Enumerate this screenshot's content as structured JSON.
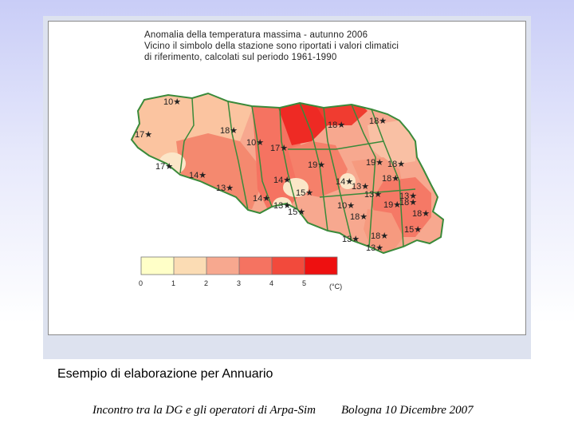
{
  "map": {
    "title_lines": [
      "Anomalia della temperatura massima - autunno 2006",
      "Vicino il simbolo della stazione sono riportati i valori climatici",
      "di riferimento, calcolati sul periodo 1961-1990"
    ],
    "station_labels": [
      "10",
      "18",
      "17",
      "18",
      "10",
      "17",
      "18",
      "18",
      "19",
      "19",
      "18",
      "17",
      "14",
      "14",
      "13",
      "14",
      "15",
      "14",
      "13",
      "13",
      "13",
      "18",
      "19",
      "13",
      "15",
      "10",
      "18",
      "18",
      "13",
      "18",
      "15",
      "13"
    ],
    "legend": {
      "ticks": [
        "0",
        "1",
        "2",
        "3",
        "4",
        "5"
      ],
      "unit": "(°C)",
      "colors": [
        "#ffffc8",
        "#fbdcb4",
        "#f7a88f",
        "#f57361",
        "#f24a3c",
        "#ee1010"
      ]
    }
  },
  "caption": "Esempio di elaborazione per Annuario",
  "footer": {
    "left": "Incontro tra la DG e gli operatori di Arpa-Sim",
    "right": "Bologna 10 Dicembre 2007"
  }
}
